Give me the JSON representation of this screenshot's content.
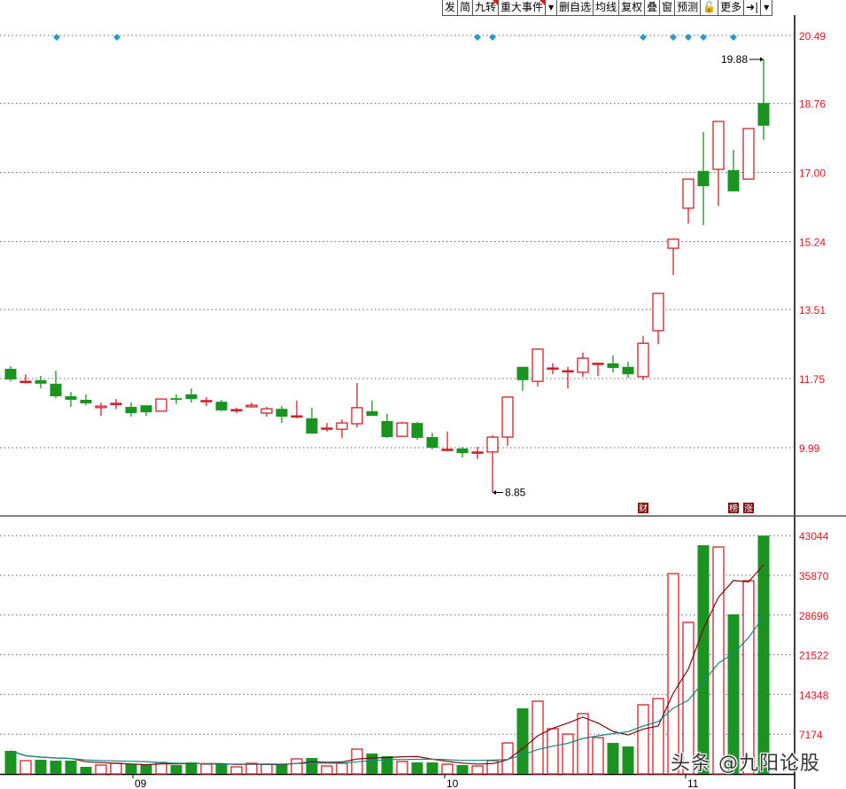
{
  "toolbar": {
    "items": [
      {
        "label": "发",
        "flag": false
      },
      {
        "label": "简",
        "flag": false
      },
      {
        "label": "九转",
        "flag": true
      },
      {
        "label": "重大事件",
        "flag": true
      },
      {
        "label": "▼",
        "icon": "dropdown-arrow-icon"
      },
      {
        "label": "删自选",
        "flag": false
      },
      {
        "label": "均线",
        "flag": false
      },
      {
        "label": "复权",
        "flag": false
      },
      {
        "label": "叠",
        "flag": false
      },
      {
        "label": "窗",
        "flag": false
      },
      {
        "label": "预测",
        "flag": false
      },
      {
        "label": "🔓",
        "icon": "lock-icon"
      },
      {
        "label": "更多",
        "flag": false
      },
      {
        "label": "➜|",
        "icon": "collapse-panel-icon"
      },
      {
        "label": "▼",
        "icon": "dropdown-arrow-icon"
      }
    ]
  },
  "colors": {
    "up": "#d0202a",
    "down": "#1a9321",
    "ma5": "#7a0a0a",
    "ma10": "#138a8a",
    "event_marker": "#2a9ac8",
    "badge": "#7a0a0a",
    "axis_label": "#e0141e"
  },
  "chart_data": {
    "type": "candlestick",
    "price_axis": {
      "ticks": [
        "20.49",
        "18.76",
        "17.00",
        "15.24",
        "13.51",
        "11.75",
        "9.99"
      ],
      "range": [
        8.6,
        20.49
      ]
    },
    "volume_axis": {
      "ticks": [
        "43044",
        "35870",
        "28696",
        "21522",
        "14348",
        "7174"
      ]
    },
    "x_labels": [
      {
        "index": 9,
        "label": "09"
      },
      {
        "index": 30,
        "label": "10"
      },
      {
        "index": 46,
        "label": "11"
      }
    ],
    "annotations": {
      "high": {
        "index": 50,
        "label": "19.88"
      },
      "low": {
        "index": 32,
        "label": "8.85"
      }
    },
    "event_marker_indices": [
      3,
      7,
      31,
      32,
      42,
      44,
      45,
      46,
      48
    ],
    "badges": [
      {
        "index": 42,
        "label": "财"
      },
      {
        "index": 48,
        "label": "榜"
      },
      {
        "index": 49,
        "label": "涨"
      }
    ],
    "candles": [
      [
        12.0,
        12.07,
        11.68,
        11.73
      ],
      [
        11.68,
        11.86,
        11.62,
        11.68
      ],
      [
        11.71,
        11.82,
        11.5,
        11.62
      ],
      [
        11.62,
        11.95,
        11.25,
        11.3
      ],
      [
        11.3,
        11.41,
        11.03,
        11.21
      ],
      [
        11.21,
        11.35,
        11.07,
        11.12
      ],
      [
        11.01,
        11.14,
        10.8,
        11.05
      ],
      [
        11.12,
        11.23,
        10.98,
        11.12
      ],
      [
        11.03,
        11.14,
        10.78,
        10.87
      ],
      [
        11.07,
        11.07,
        10.8,
        10.89
      ],
      [
        10.92,
        11.23,
        10.92,
        11.23
      ],
      [
        11.25,
        11.35,
        11.1,
        11.21
      ],
      [
        11.35,
        11.5,
        11.14,
        11.23
      ],
      [
        11.19,
        11.28,
        11.05,
        11.19
      ],
      [
        11.16,
        11.21,
        10.92,
        10.94
      ],
      [
        10.96,
        11.01,
        10.87,
        10.96
      ],
      [
        11.03,
        11.14,
        11.01,
        11.07
      ],
      [
        10.87,
        11.03,
        10.78,
        10.98
      ],
      [
        10.98,
        11.05,
        10.62,
        10.78
      ],
      [
        10.8,
        11.19,
        10.74,
        10.8
      ],
      [
        10.74,
        11.01,
        10.35,
        10.35
      ],
      [
        10.46,
        10.62,
        10.4,
        10.49
      ],
      [
        10.46,
        10.71,
        10.24,
        10.62
      ],
      [
        10.6,
        11.64,
        10.51,
        11.01
      ],
      [
        10.92,
        11.19,
        10.8,
        10.8
      ],
      [
        10.67,
        10.85,
        10.24,
        10.26
      ],
      [
        10.28,
        10.65,
        10.28,
        10.62
      ],
      [
        10.62,
        10.65,
        10.19,
        10.24
      ],
      [
        10.26,
        10.37,
        9.95,
        9.99
      ],
      [
        9.95,
        10.4,
        9.9,
        9.95
      ],
      [
        9.97,
        10.01,
        9.74,
        9.85
      ],
      [
        9.85,
        10.01,
        9.7,
        9.88
      ],
      [
        9.88,
        10.31,
        8.85,
        10.26
      ],
      [
        10.26,
        11.28,
        10.04,
        11.28
      ],
      [
        12.05,
        12.05,
        11.44,
        11.71
      ],
      [
        11.68,
        12.52,
        11.55,
        12.5
      ],
      [
        12.02,
        12.14,
        11.86,
        12.02
      ],
      [
        11.95,
        12.05,
        11.5,
        11.95
      ],
      [
        11.91,
        12.41,
        11.8,
        12.27
      ],
      [
        12.14,
        12.14,
        11.82,
        12.14
      ],
      [
        12.14,
        12.34,
        11.91,
        12.02
      ],
      [
        12.05,
        12.18,
        11.77,
        11.86
      ],
      [
        11.8,
        12.84,
        11.71,
        12.65
      ],
      [
        12.97,
        13.92,
        12.63,
        13.92
      ],
      [
        15.07,
        15.3,
        14.39,
        15.3
      ],
      [
        16.09,
        16.83,
        15.7,
        16.83
      ],
      [
        17.04,
        18.03,
        15.66,
        16.65
      ],
      [
        17.08,
        18.3,
        16.15,
        18.3
      ],
      [
        17.06,
        17.58,
        16.52,
        16.52
      ],
      [
        16.83,
        18.12,
        16.83,
        18.12
      ],
      [
        18.77,
        19.88,
        17.83,
        18.19
      ]
    ],
    "volumes": [
      4160,
      2400,
      2560,
      2400,
      2400,
      1280,
      1600,
      1920,
      1760,
      1760,
      2080,
      1600,
      2080,
      1760,
      1760,
      1280,
      1920,
      1760,
      1760,
      2720,
      2880,
      1440,
      1920,
      4480,
      3680,
      3200,
      2240,
      2080,
      2080,
      1760,
      1600,
      1440,
      2400,
      5600,
      11850,
      13130,
      8170,
      7200,
      10890,
      6560,
      5600,
      4960,
      12490,
      13610,
      36180,
      27380,
      41310,
      40990,
      28820,
      34900,
      43044
    ],
    "volume_ma": [
      {
        "period": 5,
        "color": "#7a0a0a"
      },
      {
        "period": 10,
        "color": "#138a8a"
      }
    ]
  },
  "watermark": "头条 @九阳论股"
}
